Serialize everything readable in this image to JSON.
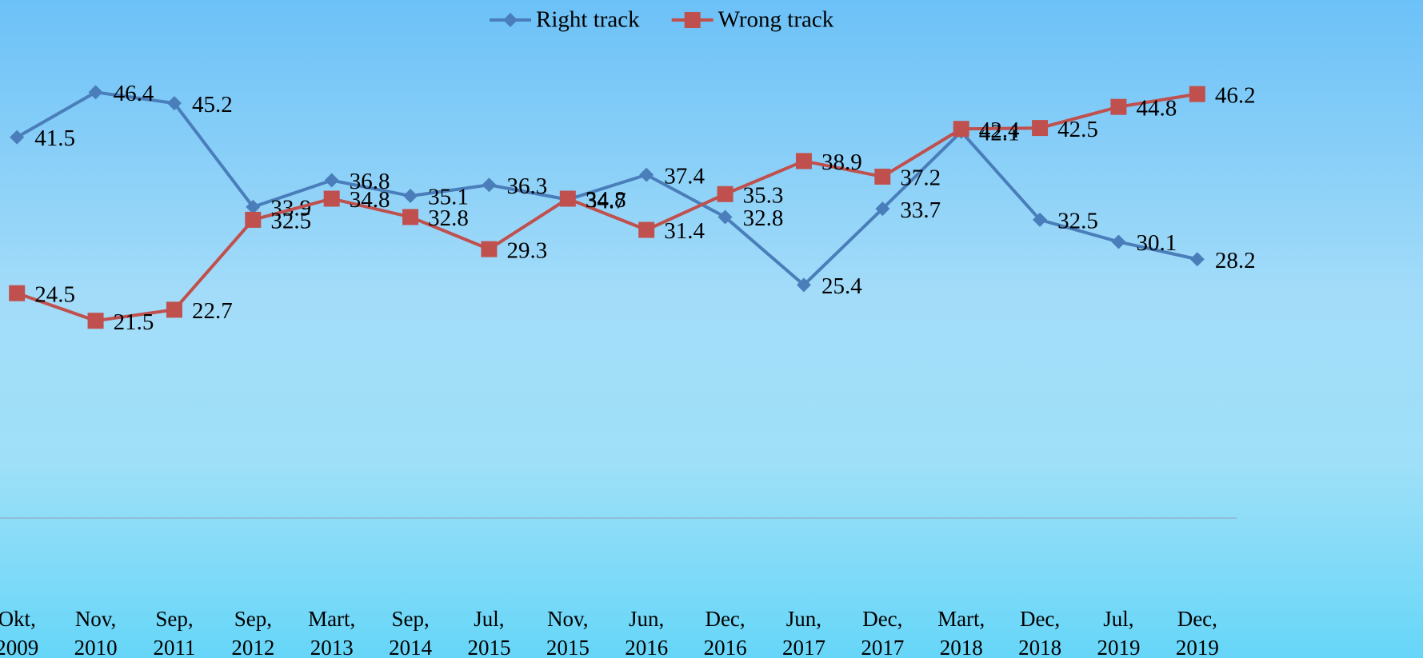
{
  "chart_data": {
    "type": "line",
    "categories": [
      "Okt, 2009",
      "Nov, 2010",
      "Sep, 2011",
      "Sep, 2012",
      "Mart, 2013",
      "Sep, 2014",
      "Jul, 2015",
      "Nov, 2015",
      "Jun, 2016",
      "Dec, 2016",
      "Jun, 2017",
      "Dec, 2017",
      "Mart, 2018",
      "Dec, 2018",
      "Jul, 2019",
      "Dec, 2019"
    ],
    "series": [
      {
        "name": "Right track",
        "color": "#4a7ebb",
        "marker": "diamond",
        "values": [
          41.5,
          46.4,
          45.2,
          33.9,
          36.8,
          35.1,
          36.3,
          34.7,
          37.4,
          32.8,
          25.4,
          33.7,
          42.1,
          32.5,
          30.1,
          28.2
        ]
      },
      {
        "name": "Wrong track",
        "color": "#c0504d",
        "marker": "square",
        "values": [
          24.5,
          21.5,
          22.7,
          32.5,
          34.8,
          32.8,
          29.3,
          34.8,
          31.4,
          35.3,
          38.9,
          37.2,
          42.4,
          42.5,
          44.8,
          46.2
        ]
      }
    ],
    "ylim": [
      0,
      50
    ],
    "legend": "top",
    "data_labels": true
  }
}
